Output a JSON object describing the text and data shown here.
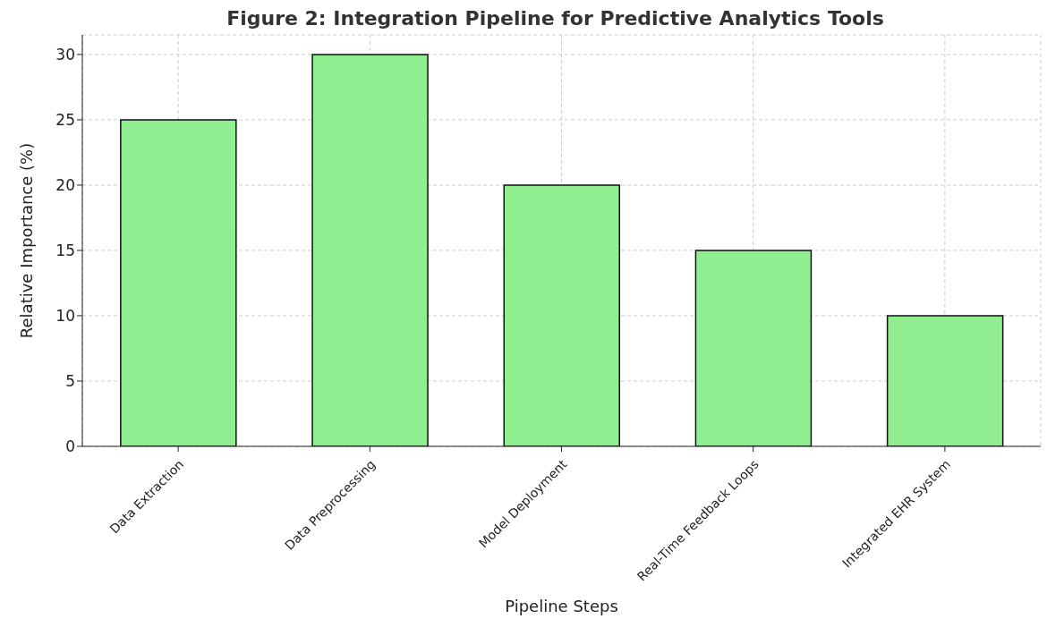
{
  "chart_data": {
    "type": "bar",
    "title": "Figure 2: Integration Pipeline for Predictive Analytics Tools",
    "xlabel": "Pipeline Steps",
    "ylabel": "Relative Importance (%)",
    "categories": [
      "Data Extraction",
      "Data Preprocessing",
      "Model Deployment",
      "Real-Time Feedback Loops",
      "Integrated EHR System"
    ],
    "values": [
      25,
      30,
      20,
      15,
      10
    ],
    "color": "#90ee90",
    "ylim": [
      0,
      31.5
    ],
    "yticks": [
      0,
      5,
      10,
      15,
      20,
      25,
      30
    ],
    "grid": true
  }
}
